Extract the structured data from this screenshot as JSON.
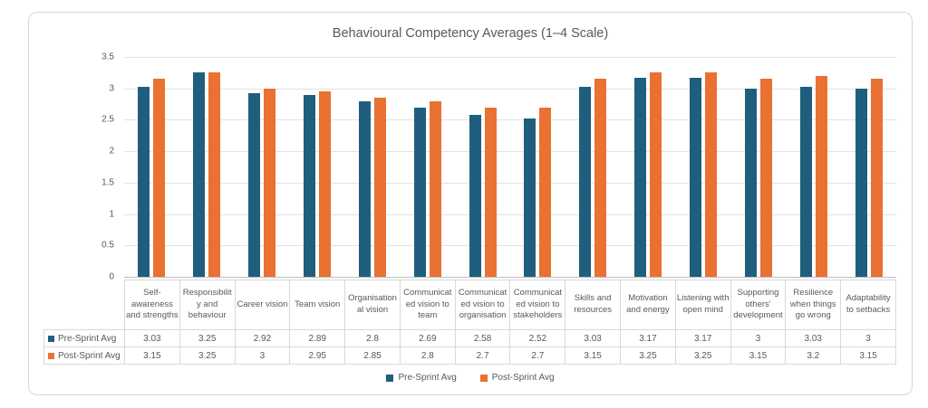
{
  "chart_data": {
    "type": "bar",
    "title": "Behavioural Competency Averages (1–4 Scale)",
    "categories": [
      "Self-awareness and strengths",
      "Responsibility and behaviour",
      "Career vision",
      "Team vision",
      "Organisational vision",
      "Communicated vision to team",
      "Communicated vision to organisation",
      "Communicated vision to stakeholders",
      "Skills and resources",
      "Motivation and energy",
      "Listening with open mind",
      "Supporting others' development",
      "Resilience when things go wrong",
      "Adaptability to setbacks"
    ],
    "series": [
      {
        "name": "Pre-Sprint Avg",
        "color": "#1F5F7D",
        "values": [
          3.03,
          3.25,
          2.92,
          2.89,
          2.8,
          2.69,
          2.58,
          2.52,
          3.03,
          3.17,
          3.17,
          3,
          3.03,
          3
        ]
      },
      {
        "name": "Post-Sprint Avg",
        "color": "#E97132",
        "values": [
          3.15,
          3.25,
          3,
          2.95,
          2.85,
          2.8,
          2.7,
          2.7,
          3.15,
          3.25,
          3.25,
          3.15,
          3.2,
          3.15
        ]
      }
    ],
    "ylim": [
      0,
      3.5
    ],
    "yticks": [
      0,
      0.5,
      1,
      1.5,
      2,
      2.5,
      3,
      3.5
    ],
    "grid": true,
    "legend_position": "bottom",
    "has_data_table": true
  }
}
